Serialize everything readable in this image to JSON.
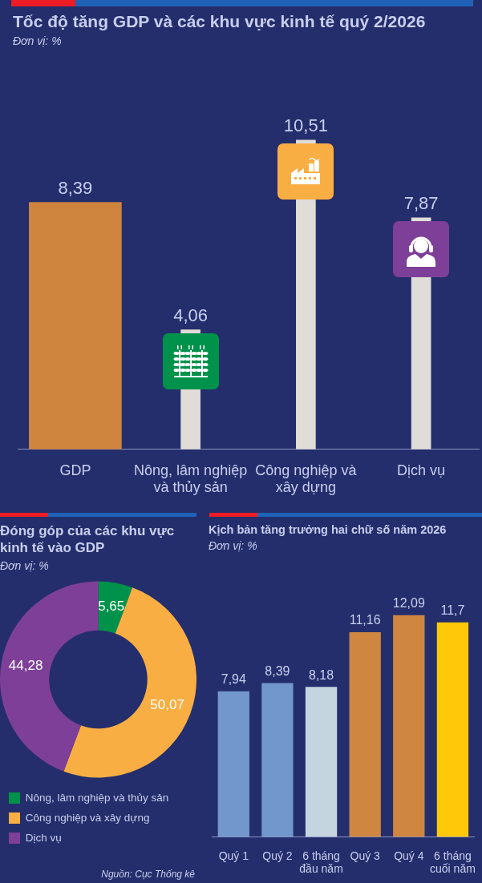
{
  "chart_data": [
    {
      "type": "bar",
      "title": "Tốc độ tăng GDP và các khu vực kinh tế quý 2/2026",
      "subtitle": "Đơn vị: %",
      "categories": [
        "GDP",
        "Nông, lâm nghiệp và thủy sản",
        "Công nghiệp và xây dựng",
        "Dịch vụ"
      ],
      "values": [
        8.39,
        4.06,
        10.51,
        7.87
      ],
      "colors": [
        "#d0853f",
        "#e0dcd8",
        "#e0dcd8",
        "#e0dcd8"
      ],
      "value_labels": [
        "8,39",
        "4,06",
        "10,51",
        "7,87"
      ]
    },
    {
      "type": "donut",
      "title": "Đóng góp của các khu vực kinh tế vào GDP",
      "subtitle": "Đơn vị: %",
      "categories": [
        "Nông, lâm nghiệp và thủy sản",
        "Công nghiệp và xây dựng",
        "Dịch vụ"
      ],
      "values": [
        5.65,
        50.07,
        44.28
      ],
      "colors": [
        "#00924a",
        "#f9ae43",
        "#7e3f98"
      ],
      "value_labels": [
        "5,65",
        "50,07",
        "44,28"
      ],
      "legend": "bottom",
      "annotations": [
        "Nguồn: Cục Thống kê"
      ]
    },
    {
      "type": "bar",
      "title": "Kịch bản tăng trưởng hai chữ số năm 2026",
      "subtitle": "Đơn vị: %",
      "categories": [
        "Quý 1",
        "Quý 2",
        "6 tháng đầu năm",
        "Quý 3",
        "Quý 4",
        "6 tháng cuối năm"
      ],
      "values": [
        7.94,
        8.39,
        8.18,
        11.16,
        12.09,
        11.7
      ],
      "colors": [
        "#7197cc",
        "#7197cc",
        "#c5d5e0",
        "#cf8640",
        "#cf8640",
        "#ffc90a"
      ],
      "value_labels": [
        "7,94",
        "8,39",
        "8,18",
        "11,16",
        "12,09",
        "11,7"
      ]
    }
  ]
}
